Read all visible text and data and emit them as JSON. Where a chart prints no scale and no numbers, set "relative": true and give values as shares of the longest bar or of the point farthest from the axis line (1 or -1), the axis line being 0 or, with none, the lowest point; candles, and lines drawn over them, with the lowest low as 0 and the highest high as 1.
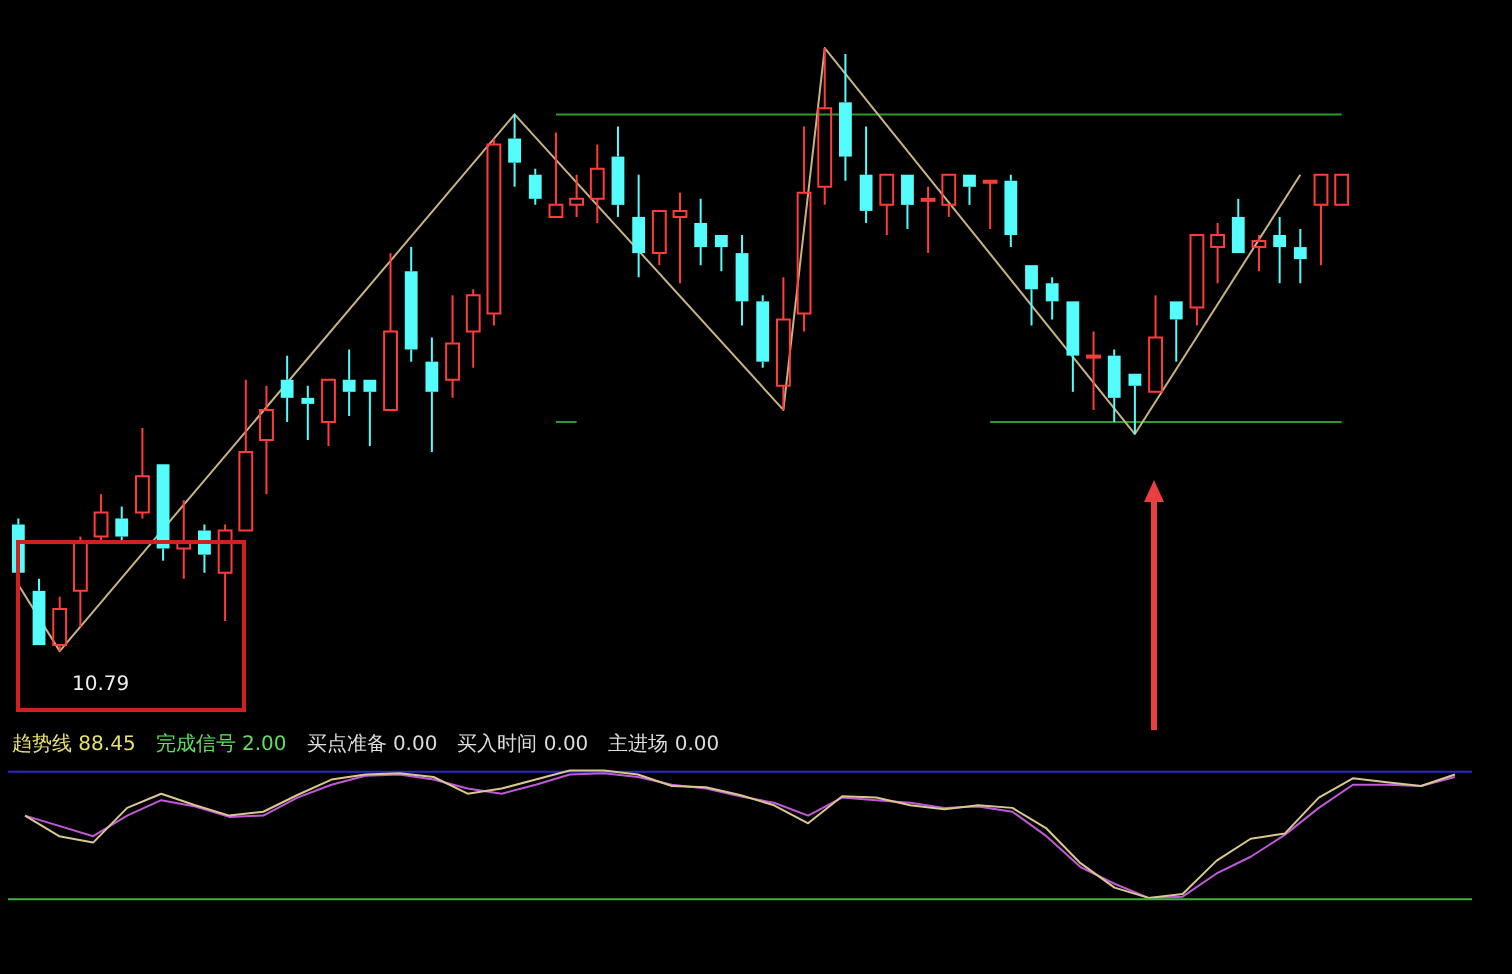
{
  "chart_data": [
    {
      "type": "candlestick",
      "relative": true,
      "legend": false,
      "annotations": [
        "10.79"
      ],
      "categories": [
        null,
        null,
        null,
        null,
        null,
        null,
        null,
        null,
        null,
        null,
        null,
        null,
        null,
        null,
        null,
        null,
        null,
        null,
        null,
        null,
        null,
        null,
        null,
        null,
        null,
        null,
        null,
        null,
        null,
        null,
        null,
        null,
        null,
        null,
        null,
        null,
        null,
        null,
        null,
        null,
        null,
        null,
        null,
        null,
        null,
        null,
        null,
        null,
        null,
        null,
        null,
        null,
        null,
        null,
        null,
        null,
        null,
        null,
        null,
        null,
        null,
        null,
        null,
        null,
        null
      ],
      "series": [
        {
          "type": "candlestick",
          "ohlc": [
            [
              0.21,
              0.22,
              0.12,
              0.13
            ],
            [
              0.1,
              0.12,
              0.01,
              0.01
            ],
            [
              0.01,
              0.09,
              0,
              0.07
            ],
            [
              0.1,
              0.19,
              0.04,
              0.18
            ],
            [
              0.19,
              0.26,
              0.18,
              0.23
            ],
            [
              0.22,
              0.24,
              0.18,
              0.19
            ],
            [
              0.23,
              0.37,
              0.22,
              0.29
            ],
            [
              0.31,
              0.31,
              0.15,
              0.17
            ],
            [
              0.17,
              0.25,
              0.12,
              0.18
            ],
            [
              0.2,
              0.21,
              0.13,
              0.16
            ],
            [
              0.13,
              0.21,
              0.05,
              0.2
            ],
            [
              0.2,
              0.45,
              0.2,
              0.33
            ],
            [
              0.35,
              0.44,
              0.26,
              0.4
            ],
            [
              0.45,
              0.49,
              0.38,
              0.42
            ],
            [
              0.42,
              0.44,
              0.35,
              0.41
            ],
            [
              0.38,
              0.45,
              0.34,
              0.45
            ],
            [
              0.45,
              0.5,
              0.39,
              0.43
            ],
            [
              0.45,
              0.45,
              0.34,
              0.43
            ],
            [
              0.4,
              0.66,
              0.4,
              0.53
            ],
            [
              0.63,
              0.67,
              0.48,
              0.5
            ],
            [
              0.48,
              0.52,
              0.33,
              0.43
            ],
            [
              0.45,
              0.59,
              0.42,
              0.51
            ],
            [
              0.53,
              0.6,
              0.47,
              0.59
            ],
            [
              0.56,
              0.85,
              0.54,
              0.84
            ],
            [
              0.85,
              0.89,
              0.77,
              0.81
            ],
            [
              0.79,
              0.8,
              0.74,
              0.75
            ],
            [
              0.72,
              0.86,
              0.72,
              0.74
            ],
            [
              0.74,
              0.79,
              0.72,
              0.75
            ],
            [
              0.75,
              0.84,
              0.71,
              0.8
            ],
            [
              0.82,
              0.87,
              0.72,
              0.74
            ],
            [
              0.72,
              0.79,
              0.62,
              0.66
            ],
            [
              0.66,
              0.73,
              0.64,
              0.73
            ],
            [
              0.72,
              0.76,
              0.61,
              0.73
            ],
            [
              0.71,
              0.75,
              0.64,
              0.67
            ],
            [
              0.69,
              0.69,
              0.63,
              0.67
            ],
            [
              0.66,
              0.69,
              0.54,
              0.58
            ],
            [
              0.58,
              0.59,
              0.47,
              0.48
            ],
            [
              0.44,
              0.62,
              0.4,
              0.55
            ],
            [
              0.56,
              0.87,
              0.53,
              0.76
            ],
            [
              0.77,
              1,
              0.74,
              0.9
            ],
            [
              0.91,
              0.99,
              0.78,
              0.82
            ],
            [
              0.79,
              0.87,
              0.71,
              0.73
            ],
            [
              0.74,
              0.79,
              0.69,
              0.79
            ],
            [
              0.79,
              0.79,
              0.7,
              0.74
            ],
            [
              0.75,
              0.77,
              0.66,
              0.75
            ],
            [
              0.74,
              0.79,
              0.72,
              0.79
            ],
            [
              0.79,
              0.79,
              0.74,
              0.77
            ],
            [
              0.78,
              0.78,
              0.7,
              0.78
            ],
            [
              0.78,
              0.79,
              0.67,
              0.69
            ],
            [
              0.64,
              0.64,
              0.54,
              0.6
            ],
            [
              0.61,
              0.62,
              0.55,
              0.58
            ],
            [
              0.58,
              0.58,
              0.43,
              0.49
            ],
            [
              0.49,
              0.53,
              0.4,
              0.49
            ],
            [
              0.49,
              0.5,
              0.38,
              0.42
            ],
            [
              0.46,
              0.46,
              0.36,
              0.44
            ],
            [
              0.43,
              0.59,
              0.43,
              0.52
            ],
            [
              0.58,
              0.58,
              0.48,
              0.55
            ],
            [
              0.57,
              0.69,
              0.54,
              0.69
            ],
            [
              0.67,
              0.71,
              0.61,
              0.69
            ],
            [
              0.72,
              0.75,
              0.66,
              0.66
            ],
            [
              0.67,
              0.69,
              0.63,
              0.68
            ],
            [
              0.69,
              0.72,
              0.61,
              0.67
            ],
            [
              0.67,
              0.7,
              0.61,
              0.65
            ],
            [
              0.74,
              0.79,
              0.64,
              0.79
            ],
            [
              0.74,
              0.79,
              0.74,
              0.79
            ]
          ],
          "colors": [
            "#54fcfc",
            "#54fcfc",
            "#ff3c3c",
            "#ff3c3c",
            "#ff3c3c",
            "#54fcfc",
            "#ff3c3c",
            "#54fcfc",
            "#ff3c3c",
            "#54fcfc",
            "#ff3c3c",
            "#ff3c3c",
            "#ff3c3c",
            "#54fcfc",
            "#54fcfc",
            "#ff3c3c",
            "#54fcfc",
            "#54fcfc",
            "#ff3c3c",
            "#54fcfc",
            "#54fcfc",
            "#ff3c3c",
            "#ff3c3c",
            "#ff3c3c",
            "#54fcfc",
            "#54fcfc",
            "#ff3c3c",
            "#ff3c3c",
            "#ff3c3c",
            "#54fcfc",
            "#54fcfc",
            "#ff3c3c",
            "#ff3c3c",
            "#54fcfc",
            "#54fcfc",
            "#54fcfc",
            "#54fcfc",
            "#ff3c3c",
            "#ff3c3c",
            "#ff3c3c",
            "#54fcfc",
            "#54fcfc",
            "#ff3c3c",
            "#54fcfc",
            "#ff3c3c",
            "#ff3c3c",
            "#54fcfc",
            "#ff3c3c",
            "#54fcfc",
            "#54fcfc",
            "#54fcfc",
            "#54fcfc",
            "#ff3c3c",
            "#54fcfc",
            "#54fcfc",
            "#ff3c3c",
            "#54fcfc",
            "#ff3c3c",
            "#ff3c3c",
            "#54fcfc",
            "#ff3c3c",
            "#54fcfc",
            "#54fcfc",
            "#ff3c3c",
            "#ff3c3c"
          ]
        },
        {
          "type": "line",
          "color": "#c8b482",
          "values": [
            0.11,
            null,
            0,
            null,
            null,
            null,
            null,
            null,
            null,
            null,
            null,
            null,
            null,
            null,
            null,
            null,
            null,
            null,
            null,
            null,
            null,
            null,
            null,
            null,
            0.89,
            null,
            null,
            null,
            null,
            null,
            null,
            null,
            null,
            null,
            null,
            null,
            null,
            0.4,
            null,
            1,
            null,
            null,
            null,
            null,
            null,
            null,
            null,
            null,
            null,
            null,
            null,
            null,
            null,
            null,
            0.36,
            null,
            null,
            null,
            null,
            null,
            null,
            null,
            0.79,
            null,
            null
          ]
        },
        {
          "type": "line",
          "color": "#2e9a2e",
          "values": [
            null,
            null,
            null,
            null,
            null,
            null,
            null,
            null,
            null,
            null,
            null,
            null,
            null,
            null,
            null,
            null,
            null,
            null,
            null,
            null,
            null,
            null,
            null,
            null,
            null,
            null,
            0.89,
            0.89,
            0.89,
            0.89,
            0.89,
            0.89,
            0.89,
            0.89,
            0.89,
            0.89,
            0.89,
            0.89,
            0.89,
            0.89,
            0.89,
            0.89,
            0.89,
            0.89,
            0.89,
            0.89,
            0.89,
            0.89,
            0.89,
            0.89,
            0.89,
            0.89,
            0.89,
            0.89,
            0.89,
            0.89,
            0.89,
            0.89,
            0.89,
            0.89,
            0.89,
            0.89,
            0.89,
            0.89,
            0.89
          ]
        },
        {
          "type": "line",
          "color": "#2e9a2e",
          "values": [
            null,
            null,
            null,
            null,
            null,
            null,
            null,
            null,
            null,
            null,
            null,
            null,
            null,
            null,
            null,
            null,
            null,
            null,
            null,
            null,
            null,
            null,
            null,
            null,
            null,
            null,
            0.38,
            0.38,
            null,
            null,
            null,
            null,
            null,
            null,
            null,
            null,
            null,
            null,
            null,
            null,
            null,
            null,
            null,
            null,
            null,
            null,
            null,
            null,
            null,
            null,
            null,
            null,
            null,
            null,
            null,
            null,
            null,
            null,
            null,
            null,
            null,
            null,
            null,
            null,
            null
          ]
        },
        {
          "type": "line",
          "color": "#2e9a2e",
          "values": [
            null,
            null,
            null,
            null,
            null,
            null,
            null,
            null,
            null,
            null,
            null,
            null,
            null,
            null,
            null,
            null,
            null,
            null,
            null,
            null,
            null,
            null,
            null,
            null,
            null,
            null,
            null,
            null,
            null,
            null,
            null,
            null,
            null,
            null,
            null,
            null,
            null,
            null,
            null,
            null,
            null,
            null,
            null,
            null,
            null,
            null,
            null,
            0.38,
            0.38,
            0.38,
            0.38,
            0.38,
            0.38,
            0.38,
            0.38,
            0.38,
            0.38,
            0.38,
            0.38,
            0.38,
            0.38,
            0.38,
            0.38,
            0.38,
            0.38
          ]
        }
      ]
    },
    {
      "type": "line",
      "relative": true,
      "legend": false,
      "annotations": [
        "趋势线 88.45",
        "完成信号 2.00",
        "买点准备 0.00",
        "买入时间 0.00",
        "主进场 0.00"
      ],
      "categories": [
        null,
        null,
        null,
        null,
        null,
        null,
        null,
        null,
        null,
        null,
        null,
        null,
        null,
        null,
        null,
        null,
        null,
        null,
        null,
        null,
        null,
        null,
        null,
        null,
        null,
        null,
        null,
        null,
        null,
        null,
        null,
        null,
        null,
        null,
        null,
        null,
        null,
        null,
        null,
        null,
        null,
        null,
        null
      ],
      "ref_lines": [
        {
          "axis": "y",
          "value": 0.99,
          "color": "#2828c8"
        }
      ],
      "series": [
        {
          "color": "#d8c88c",
          "values": [
            0.65,
            0.49,
            0.44,
            0.71,
            0.82,
            0.73,
            0.65,
            0.68,
            0.81,
            0.93,
            0.97,
            0.98,
            0.95,
            0.82,
            0.86,
            0.93,
            1,
            1,
            0.97,
            0.88,
            0.87,
            0.81,
            0.73,
            0.59,
            0.8,
            0.79,
            0.73,
            0.7,
            0.73,
            0.71,
            0.55,
            0.28,
            0.09,
            0.01,
            0.04,
            0.3,
            0.47,
            0.51,
            0.79,
            0.94,
            0.91,
            0.88,
            0.97
          ]
        },
        {
          "color": "#c058d8",
          "values": [
            0.65,
            0.57,
            0.49,
            0.65,
            0.77,
            0.72,
            0.64,
            0.65,
            0.79,
            0.89,
            0.96,
            0.97,
            0.93,
            0.86,
            0.82,
            0.89,
            0.97,
            0.98,
            0.95,
            0.89,
            0.86,
            0.8,
            0.75,
            0.65,
            0.79,
            0.77,
            0.75,
            0.71,
            0.72,
            0.68,
            0.49,
            0.25,
            0.12,
            0.01,
            0.02,
            0.2,
            0.33,
            0.5,
            0.71,
            0.89,
            0.89,
            0.88,
            0.95
          ]
        }
      ]
    }
  ]
}
